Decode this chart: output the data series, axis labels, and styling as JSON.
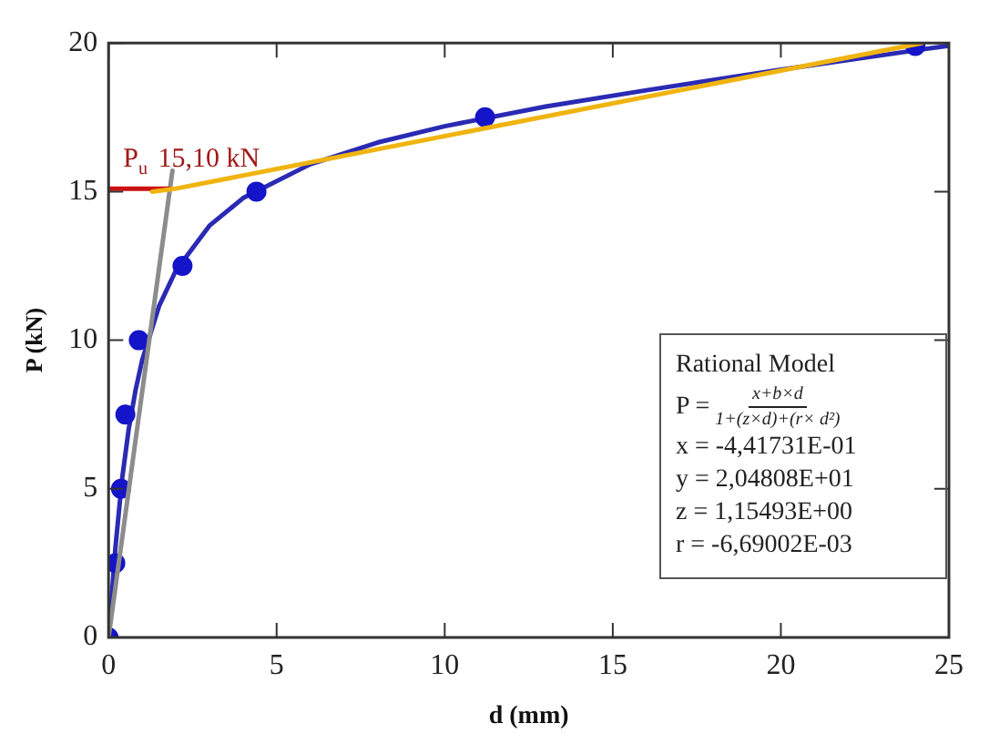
{
  "chart_data": {
    "type": "scatter",
    "xlabel": "d (mm)",
    "ylabel": "P (kN)",
    "xlim": [
      0,
      25
    ],
    "ylim": [
      0,
      20
    ],
    "xticks": [
      0,
      5,
      10,
      15,
      20,
      25
    ],
    "yticks": [
      0,
      5,
      10,
      15,
      20
    ],
    "grid": false,
    "legend": false,
    "series": [
      {
        "type": "line",
        "color": "#2a2ab4",
        "marker": "none",
        "x": [
          0.05,
          0.1,
          0.2,
          0.4,
          0.6,
          0.8,
          1,
          1.5,
          2,
          3,
          4,
          6,
          8,
          10,
          13,
          16,
          20,
          24,
          25
        ],
        "values": [
          0.55,
          1.44,
          2.97,
          5.31,
          7.01,
          8.3,
          9.33,
          11.14,
          12.34,
          13.85,
          14.78,
          15.92,
          16.65,
          17.2,
          17.86,
          18.41,
          19.1,
          19.75,
          19.91
        ]
      },
      {
        "type": "scatter",
        "color": "#1414c8",
        "marker": "circle",
        "x": [
          0,
          0.2,
          0.37,
          0.5,
          0.9,
          2.2,
          4.4,
          11.2,
          24
        ],
        "values": [
          0,
          2.5,
          5,
          7.5,
          10,
          12.5,
          15,
          17.5,
          19.9
        ]
      },
      {
        "type": "line",
        "color": "#8c8c8c",
        "marker": "none",
        "x": [
          0,
          1.9
        ],
        "values": [
          0,
          15.7
        ]
      },
      {
        "type": "line",
        "color": "#cc1010",
        "marker": "none",
        "x": [
          0,
          1.8
        ],
        "values": [
          15.1,
          15.1
        ]
      },
      {
        "type": "line",
        "color": "#f0b410",
        "marker": "none",
        "x": [
          1.3,
          2,
          24.2
        ],
        "values": [
          15,
          15.1,
          20
        ]
      }
    ],
    "annotations": [
      {
        "text": "P$_{u}$ 15,10 kN",
        "x": 0,
        "y": 15.1
      },
      "Rational Model",
      "P =",
      "x+b×d",
      "1+(z×d)+(r× d²)",
      "x = -4,41731E-01",
      "y = 2,04808E+01",
      "z = 1,15493E+00",
      "r = -6,69002E-03"
    ]
  }
}
